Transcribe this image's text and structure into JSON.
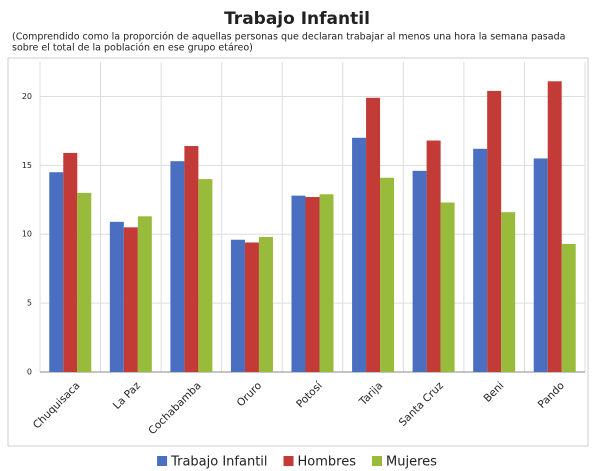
{
  "chart_data": {
    "type": "bar",
    "title": "Trabajo Infantil",
    "subtitle": [
      "(Comprendido como la proporción de aquellas personas que declaran trabajar al menos una hora la semana pasada",
      "sobre el total de la población en ese grupo etáreo)"
    ],
    "categories": [
      "Chuquisaca",
      "La Paz",
      "Cochabamba",
      "Oruro",
      "Potosí",
      "Tarija",
      "Santa Cruz",
      "Beni",
      "Pando"
    ],
    "series": [
      {
        "name": "Trabajo Infantil",
        "color": "#4a6fc1",
        "values": [
          14.5,
          10.9,
          15.3,
          9.6,
          12.8,
          17.0,
          14.6,
          16.2,
          15.5
        ]
      },
      {
        "name": "Hombres",
        "color": "#c23b37",
        "values": [
          15.9,
          10.5,
          16.4,
          9.4,
          12.7,
          19.9,
          16.8,
          20.4,
          21.1
        ]
      },
      {
        "name": "Mujeres",
        "color": "#98bb3c",
        "values": [
          13.0,
          11.3,
          14.0,
          9.8,
          12.9,
          14.1,
          12.3,
          11.6,
          9.3
        ]
      }
    ],
    "ylim": [
      0,
      22.5
    ],
    "yticks": [
      0,
      5,
      10,
      15,
      20
    ],
    "grid": true,
    "legend": "bottom"
  }
}
